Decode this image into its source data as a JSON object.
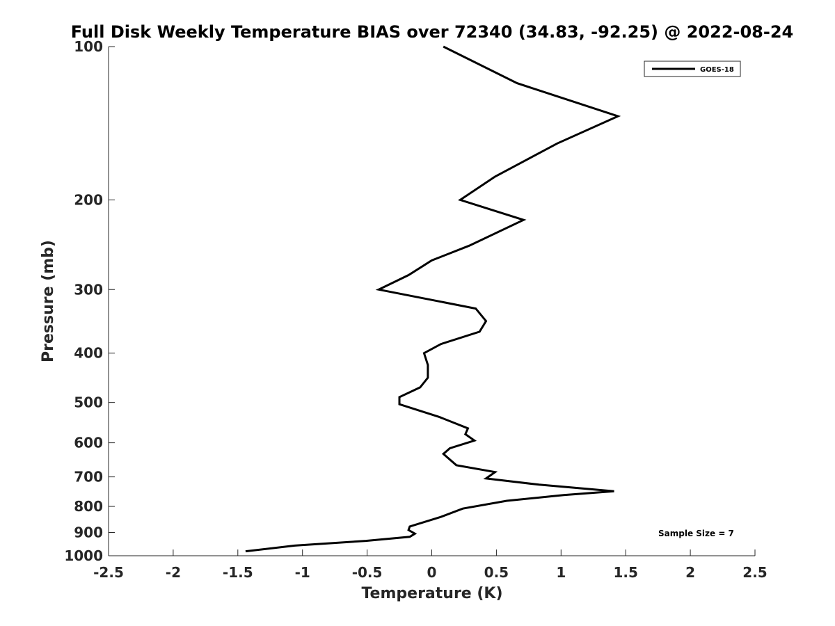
{
  "chart_data": {
    "type": "line",
    "title": "Full Disk Weekly Temperature BIAS over 72340 (34.83, -92.25) @ 2022-08-24",
    "xlabel": "Temperature (K)",
    "ylabel": "Pressure (mb)",
    "xlim": [
      -2.5,
      2.5
    ],
    "ylim": [
      1000,
      100
    ],
    "yscale": "log",
    "y_reversed": true,
    "grid": false,
    "legend_position": "top-right",
    "x_ticks": [
      "-2.5",
      "-2",
      "-1.5",
      "-1",
      "-0.5",
      "0",
      "0.5",
      "1",
      "1.5",
      "2",
      "2.5"
    ],
    "x_tick_values": [
      -2.5,
      -2,
      -1.5,
      -1,
      -0.5,
      0,
      0.5,
      1,
      1.5,
      2,
      2.5
    ],
    "y_ticks": [
      "100",
      "200",
      "300",
      "400",
      "500",
      "600",
      "700",
      "800",
      "900",
      "1000"
    ],
    "y_tick_values": [
      100,
      200,
      300,
      400,
      500,
      600,
      700,
      800,
      900,
      1000
    ],
    "series": [
      {
        "name": "GOES-18",
        "color": "#000000",
        "points": [
          {
            "t": 0.09,
            "p": 100
          },
          {
            "t": 0.66,
            "p": 118
          },
          {
            "t": 1.44,
            "p": 137
          },
          {
            "t": 0.97,
            "p": 155
          },
          {
            "t": 0.49,
            "p": 180
          },
          {
            "t": 0.22,
            "p": 200
          },
          {
            "t": 0.71,
            "p": 219
          },
          {
            "t": 0.29,
            "p": 246
          },
          {
            "t": 0.0,
            "p": 263
          },
          {
            "t": -0.18,
            "p": 281
          },
          {
            "t": -0.41,
            "p": 300
          },
          {
            "t": 0.34,
            "p": 327
          },
          {
            "t": 0.42,
            "p": 346
          },
          {
            "t": 0.37,
            "p": 363
          },
          {
            "t": 0.07,
            "p": 384
          },
          {
            "t": -0.06,
            "p": 400
          },
          {
            "t": -0.03,
            "p": 422
          },
          {
            "t": -0.03,
            "p": 447
          },
          {
            "t": -0.09,
            "p": 467
          },
          {
            "t": -0.25,
            "p": 488
          },
          {
            "t": -0.25,
            "p": 504
          },
          {
            "t": 0.06,
            "p": 534
          },
          {
            "t": 0.28,
            "p": 562
          },
          {
            "t": 0.26,
            "p": 577
          },
          {
            "t": 0.33,
            "p": 594
          },
          {
            "t": 0.14,
            "p": 615
          },
          {
            "t": 0.09,
            "p": 631
          },
          {
            "t": 0.19,
            "p": 664
          },
          {
            "t": 0.49,
            "p": 685
          },
          {
            "t": 0.42,
            "p": 705
          },
          {
            "t": 0.83,
            "p": 725
          },
          {
            "t": 1.41,
            "p": 747
          },
          {
            "t": 1.02,
            "p": 760
          },
          {
            "t": 0.58,
            "p": 780
          },
          {
            "t": 0.24,
            "p": 808
          },
          {
            "t": 0.07,
            "p": 839
          },
          {
            "t": -0.17,
            "p": 876
          },
          {
            "t": -0.18,
            "p": 890
          },
          {
            "t": -0.13,
            "p": 905
          },
          {
            "t": -0.17,
            "p": 918
          },
          {
            "t": -0.51,
            "p": 935
          },
          {
            "t": -1.06,
            "p": 955
          },
          {
            "t": -1.44,
            "p": 980
          }
        ]
      }
    ],
    "annotations": [
      "Sample Size = 7"
    ]
  }
}
